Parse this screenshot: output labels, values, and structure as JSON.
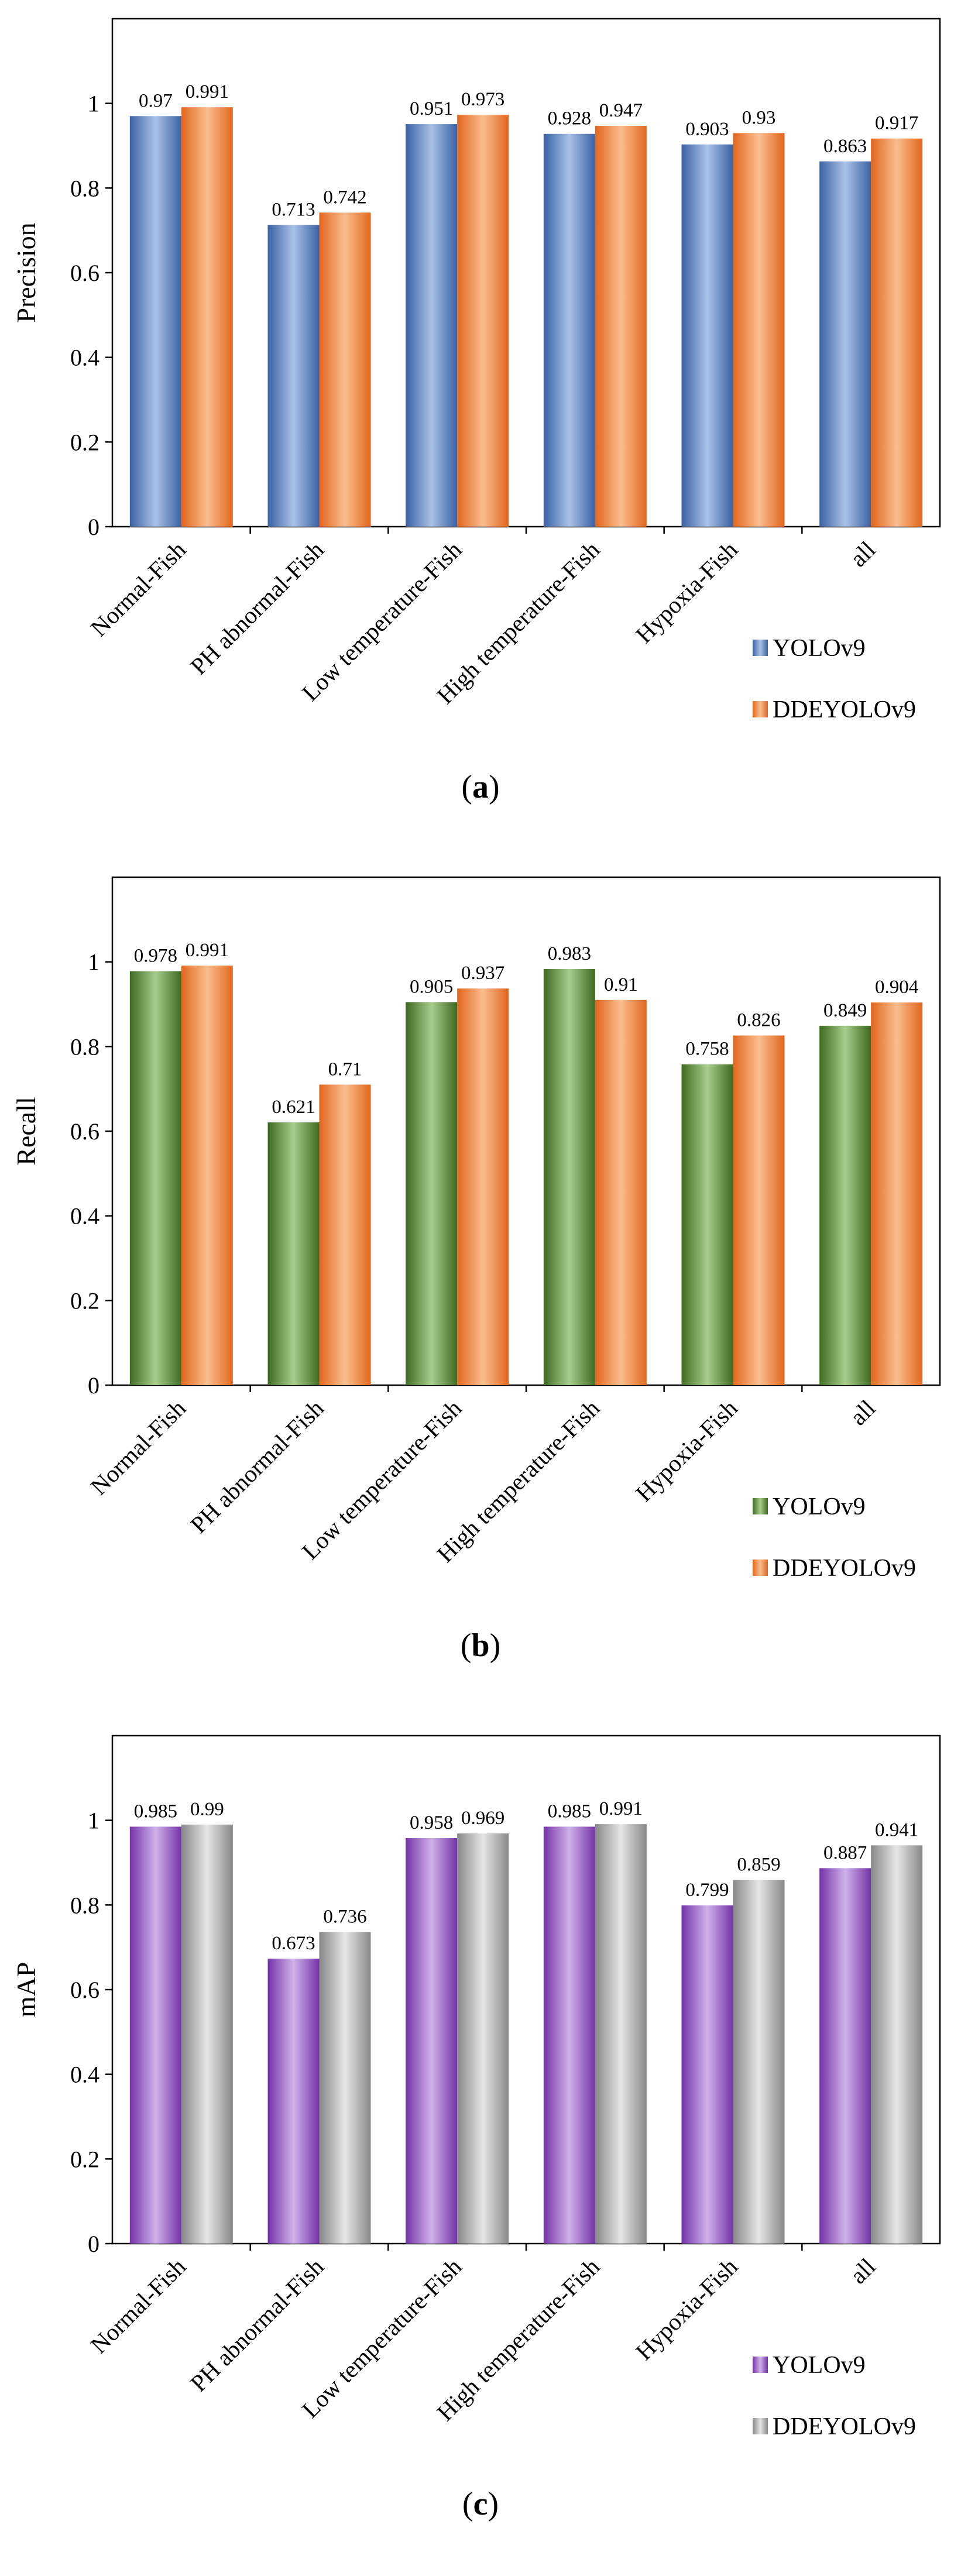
{
  "chart_data": [
    {
      "panel": "a",
      "type": "bar",
      "caption": {
        "open": "(",
        "letter": "a",
        "close": ")"
      },
      "ylabel": "Precision",
      "ylim": [
        0,
        1.2
      ],
      "yticks": [
        "0",
        "0.2",
        "0.4",
        "0.6",
        "0.8",
        "1"
      ],
      "categories": [
        "Normal-Fish",
        "PH abnormal-Fish",
        "Low temperature-Fish",
        "High temperature-Fish",
        "Hypoxia-Fish",
        "all"
      ],
      "series": [
        {
          "name": "YOLOv9",
          "values": [
            0.97,
            0.713,
            0.951,
            0.928,
            0.903,
            0.863
          ],
          "labels": [
            "0.97",
            "0.713",
            "0.951",
            "0.928",
            "0.903",
            "0.863"
          ]
        },
        {
          "name": "DDEYOLOv9",
          "values": [
            0.991,
            0.742,
            0.973,
            0.947,
            0.93,
            0.917
          ],
          "labels": [
            "0.991",
            "0.742",
            "0.973",
            "0.947",
            "0.93",
            "0.917"
          ]
        }
      ],
      "colors": {
        "YOLOv9": {
          "dark": "#3B62A3",
          "light": "#A9C2E8"
        },
        "DDEYOLOv9": {
          "dark": "#E2661E",
          "light": "#F9BE8E"
        }
      },
      "legend": "bottom-right",
      "grid": false
    },
    {
      "panel": "b",
      "type": "bar",
      "caption": {
        "open": "(",
        "letter": "b",
        "close": ")"
      },
      "ylabel": "Recall",
      "ylim": [
        0,
        1.2
      ],
      "yticks": [
        "0",
        "0.2",
        "0.4",
        "0.6",
        "0.8",
        "1"
      ],
      "categories": [
        "Normal-Fish",
        "PH abnormal-Fish",
        "Low temperature-Fish",
        "High temperature-Fish",
        "Hypoxia-Fish",
        "all"
      ],
      "series": [
        {
          "name": "YOLOv9",
          "values": [
            0.978,
            0.621,
            0.905,
            0.983,
            0.758,
            0.849
          ],
          "labels": [
            "0.978",
            "0.621",
            "0.905",
            "0.983",
            "0.758",
            "0.849"
          ]
        },
        {
          "name": "DDEYOLOv9",
          "values": [
            0.991,
            0.71,
            0.937,
            0.91,
            0.826,
            0.904
          ],
          "labels": [
            "0.991",
            "0.71",
            "0.937",
            "0.91",
            "0.826",
            "0.904"
          ]
        }
      ],
      "colors": {
        "YOLOv9": {
          "dark": "#3E6B22",
          "light": "#A8CC8C"
        },
        "DDEYOLOv9": {
          "dark": "#E2661E",
          "light": "#F9BE8E"
        }
      },
      "legend": "bottom-right",
      "grid": false
    },
    {
      "panel": "c",
      "type": "bar",
      "caption": {
        "open": "(",
        "letter": "c",
        "close": ")"
      },
      "ylabel": "mAP",
      "ylim": [
        0,
        1.2
      ],
      "yticks": [
        "0",
        "0.2",
        "0.4",
        "0.6",
        "0.8",
        "1"
      ],
      "categories": [
        "Normal-Fish",
        "PH abnormal-Fish",
        "Low temperature-Fish",
        "High temperature-Fish",
        "Hypoxia-Fish",
        "all"
      ],
      "series": [
        {
          "name": "YOLOv9",
          "values": [
            0.985,
            0.673,
            0.958,
            0.985,
            0.799,
            0.887
          ],
          "labels": [
            "0.985",
            "0.673",
            "0.958",
            "0.985",
            "0.799",
            "0.887"
          ]
        },
        {
          "name": "DDEYOLOv9",
          "values": [
            0.99,
            0.736,
            0.969,
            0.991,
            0.859,
            0.941
          ],
          "labels": [
            "0.99",
            "0.736",
            "0.969",
            "0.991",
            "0.859",
            "0.941"
          ]
        }
      ],
      "colors": {
        "YOLOv9": {
          "dark": "#7433A8",
          "light": "#D0B2EA"
        },
        "DDEYOLOv9": {
          "dark": "#888888",
          "light": "#E6E6E6"
        }
      },
      "legend": "bottom-right",
      "grid": false
    }
  ]
}
